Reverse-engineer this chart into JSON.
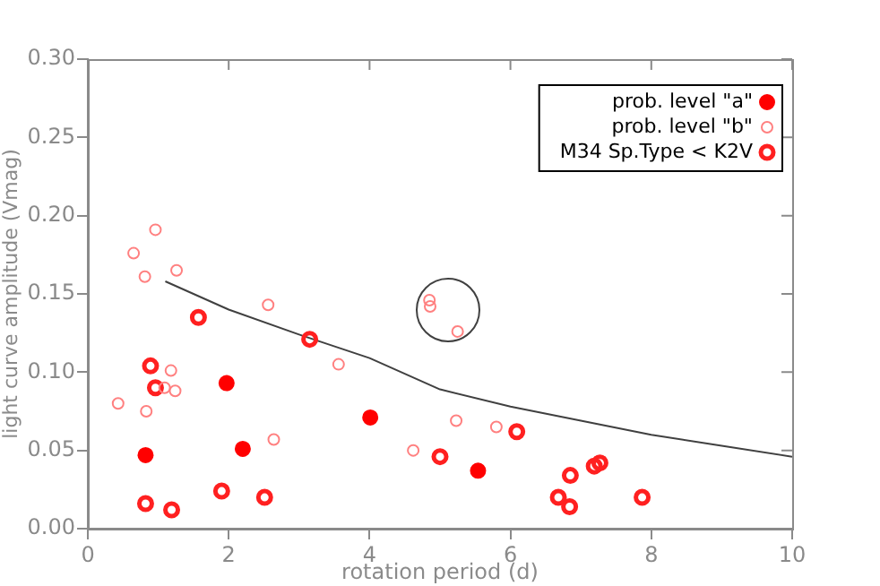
{
  "chart_data": {
    "type": "scatter",
    "xlabel": "rotation period (d)",
    "ylabel": "light curve amplitude (Vmag)",
    "xlim": [
      0,
      10
    ],
    "xticks": [
      0,
      2,
      4,
      6,
      8,
      10
    ],
    "ylim": [
      0,
      0.3
    ],
    "yticks": [
      {
        "value": 0,
        "label": "0.00"
      },
      {
        "value": 0.05,
        "label": "0.05"
      },
      {
        "value": 0.1,
        "label": "0.10"
      },
      {
        "value": 0.15,
        "label": "0.15"
      },
      {
        "value": 0.2,
        "label": "0.20"
      },
      {
        "value": 0.25,
        "label": "0.25"
      },
      {
        "value": 0.3,
        "label": "0.30"
      }
    ],
    "grid": false,
    "legend": "top right",
    "marker": "circle",
    "series": [
      {
        "name": "prob. level \"a\"",
        "color": "#ff0000",
        "x": [
          0.82,
          1.97,
          2.2,
          4.01,
          5.54
        ],
        "values": [
          0.047,
          0.093,
          0.051,
          0.071,
          0.037
        ]
      },
      {
        "name": "prob. level \"b\"",
        "color": "#ff8080",
        "x": [
          0.96,
          0.65,
          0.81,
          1.26,
          2.56,
          1.18,
          1.09,
          1.24,
          0.43,
          0.83,
          3.56,
          2.64,
          4.62,
          5.23,
          5.8,
          4.85,
          4.86,
          5.25
        ],
        "values": [
          0.191,
          0.176,
          0.161,
          0.165,
          0.143,
          0.101,
          0.09,
          0.088,
          0.08,
          0.075,
          0.105,
          0.057,
          0.05,
          0.069,
          0.065,
          0.146,
          0.142,
          0.126
        ]
      },
      {
        "name": "M34 Sp.Type < K2V",
        "color": "#ff2020",
        "x": [
          1.57,
          0.89,
          0.96,
          0.82,
          1.19,
          1.9,
          2.51,
          3.15,
          5.0,
          6.09,
          6.85,
          6.68,
          6.84,
          7.19,
          7.27,
          7.87
        ],
        "values": [
          0.135,
          0.104,
          0.09,
          0.016,
          0.012,
          0.024,
          0.02,
          0.121,
          0.046,
          0.062,
          0.034,
          0.02,
          0.014,
          0.04,
          0.042,
          0.02
        ]
      },
      {
        "type": "line",
        "color": "#404040",
        "marker": "none",
        "x": [
          1.1,
          2,
          3,
          4,
          5,
          6,
          7,
          8,
          9,
          10
        ],
        "values": [
          0.158,
          0.14,
          0.124,
          0.109,
          0.089,
          0.078,
          0.069,
          0.06,
          0.053,
          0.046
        ]
      }
    ]
  }
}
